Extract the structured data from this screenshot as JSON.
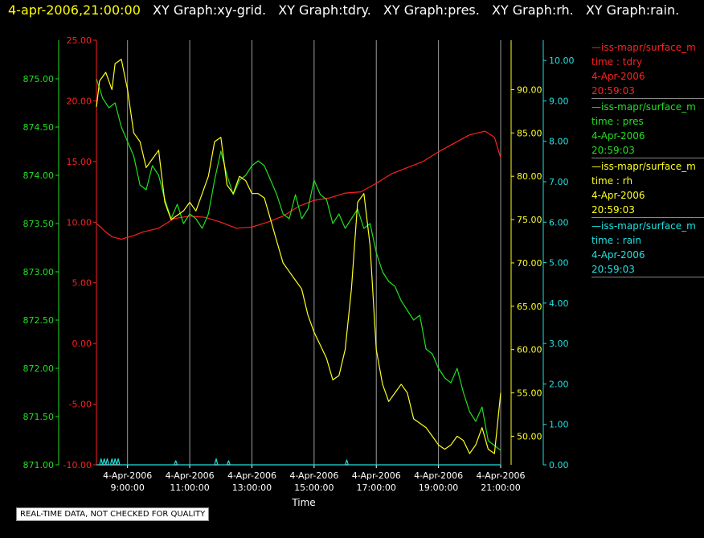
{
  "header": {
    "date": "4-apr-2006,21:00:00",
    "titles": [
      "XY Graph:xy-grid.",
      "XY Graph:tdry.",
      "XY Graph:pres.",
      "XY Graph:rh.",
      "XY Graph:rain."
    ]
  },
  "legend": [
    {
      "line": "—iss-mapr/surface_m",
      "var": "time : tdry",
      "date": "4-Apr-2006",
      "time": "20:59:03",
      "color": "#ff2020"
    },
    {
      "line": "—iss-mapr/surface_m",
      "var": "time : pres",
      "date": "4-Apr-2006",
      "time": "20:59:03",
      "color": "#20e020"
    },
    {
      "line": "—iss-mapr/surface_m",
      "var": "time : rh",
      "date": "4-Apr-2006",
      "time": "20:59:03",
      "color": "#ffff20"
    },
    {
      "line": "—iss-mapr/surface_m",
      "var": "time : rain",
      "date": "4-Apr-2006",
      "time": "20:59:03",
      "color": "#20e0e0"
    }
  ],
  "quality_note": "REAL-TIME DATA, NOT CHECKED FOR QUALITY",
  "chart_data": {
    "type": "line",
    "xlabel": "Time",
    "x_range_hours": [
      8.0,
      21.0
    ],
    "x_ticks": [
      {
        "hour": 9,
        "date": "4-Apr-2006",
        "time": "9:00:00"
      },
      {
        "hour": 11,
        "date": "4-Apr-2006",
        "time": "11:00:00"
      },
      {
        "hour": 13,
        "date": "4-Apr-2006",
        "time": "13:00:00"
      },
      {
        "hour": 15,
        "date": "4-Apr-2006",
        "time": "15:00:00"
      },
      {
        "hour": 17,
        "date": "4-Apr-2006",
        "time": "17:00:00"
      },
      {
        "hour": 19,
        "date": "4-Apr-2006",
        "time": "19:00:00"
      },
      {
        "hour": 21,
        "date": "4-Apr-2006",
        "time": "21:00:00"
      }
    ],
    "grid": "vertical",
    "axes": {
      "tdry": {
        "color": "#ff2020",
        "range": [
          -10,
          25
        ],
        "ticks": [
          "25.00",
          "20.00",
          "15.00",
          "10.00",
          "5.00",
          "0.00",
          "-5.00",
          "-10.00"
        ]
      },
      "pres": {
        "color": "#20e020",
        "range": [
          871.0,
          875.4
        ],
        "ticks": [
          "875.00",
          "874.50",
          "874.00",
          "873.50",
          "873.00",
          "872.50",
          "872.00",
          "871.50",
          "871.00"
        ]
      },
      "rh": {
        "color": "#ffff20",
        "range": [
          46.7,
          95.7
        ],
        "ticks": [
          "90.00",
          "85.00",
          "80.00",
          "75.00",
          "70.00",
          "65.00",
          "60.00",
          "55.00",
          "50.00"
        ]
      },
      "rain": {
        "color": "#20e0e0",
        "range": [
          0,
          10.5
        ],
        "ticks": [
          "10.00",
          "9.00",
          "8.00",
          "7.00",
          "6.00",
          "5.00",
          "4.00",
          "3.00",
          "2.00",
          "1.00",
          "0.00"
        ]
      }
    },
    "series": [
      {
        "key": "tdry",
        "color": "#ff2020",
        "x": [
          8.0,
          8.3,
          8.5,
          8.8,
          9.2,
          9.5,
          10.0,
          10.5,
          11.0,
          11.5,
          12.0,
          12.5,
          13.0,
          13.5,
          14.0,
          14.5,
          15.0,
          15.5,
          16.0,
          16.5,
          17.0,
          17.5,
          18.0,
          18.5,
          19.0,
          19.5,
          20.0,
          20.5,
          20.8,
          21.0
        ],
        "y": [
          9.9,
          9.2,
          8.8,
          8.6,
          8.9,
          9.2,
          9.5,
          10.3,
          10.5,
          10.4,
          10.0,
          9.5,
          9.6,
          10.0,
          10.5,
          11.3,
          11.8,
          12.0,
          12.4,
          12.5,
          13.2,
          14.0,
          14.5,
          15.0,
          15.8,
          16.5,
          17.2,
          17.5,
          17.0,
          15.3
        ]
      },
      {
        "key": "pres",
        "color": "#20e020",
        "x": [
          8.0,
          8.2,
          8.4,
          8.6,
          8.8,
          9.0,
          9.2,
          9.4,
          9.6,
          9.8,
          10.0,
          10.2,
          10.4,
          10.6,
          10.8,
          11.0,
          11.2,
          11.4,
          11.6,
          11.8,
          12.0,
          12.2,
          12.4,
          12.6,
          12.8,
          13.0,
          13.2,
          13.4,
          13.6,
          13.8,
          14.0,
          14.2,
          14.4,
          14.6,
          14.8,
          15.0,
          15.2,
          15.4,
          15.6,
          15.8,
          16.0,
          16.2,
          16.4,
          16.6,
          16.8,
          17.0,
          17.2,
          17.4,
          17.6,
          17.8,
          18.0,
          18.2,
          18.4,
          18.6,
          18.8,
          19.0,
          19.2,
          19.4,
          19.6,
          19.8,
          20.0,
          20.2,
          20.4,
          20.6,
          20.8,
          21.0
        ],
        "y": [
          875.0,
          874.8,
          874.7,
          874.75,
          874.5,
          874.35,
          874.2,
          873.9,
          873.85,
          874.1,
          874.0,
          873.75,
          873.55,
          873.7,
          873.5,
          873.6,
          873.55,
          873.45,
          873.6,
          873.95,
          874.25,
          874.0,
          873.8,
          873.95,
          874.0,
          874.1,
          874.15,
          874.1,
          873.95,
          873.8,
          873.6,
          873.55,
          873.8,
          873.55,
          873.65,
          873.95,
          873.8,
          873.75,
          873.5,
          873.6,
          873.45,
          873.55,
          873.65,
          873.45,
          873.5,
          873.2,
          873.0,
          872.9,
          872.85,
          872.7,
          872.6,
          872.5,
          872.55,
          872.2,
          872.15,
          872.0,
          871.9,
          871.85,
          872.0,
          871.75,
          871.55,
          871.45,
          871.6,
          871.25,
          871.2,
          871.15
        ]
      },
      {
        "key": "rh",
        "color": "#ffff20",
        "x": [
          8.0,
          8.1,
          8.3,
          8.5,
          8.6,
          8.8,
          9.0,
          9.2,
          9.4,
          9.6,
          9.8,
          10.0,
          10.2,
          10.4,
          10.6,
          10.8,
          11.0,
          11.2,
          11.4,
          11.6,
          11.8,
          12.0,
          12.2,
          12.4,
          12.6,
          12.8,
          13.0,
          13.2,
          13.4,
          13.6,
          13.8,
          14.0,
          14.2,
          14.4,
          14.6,
          14.8,
          15.0,
          15.2,
          15.4,
          15.6,
          15.8,
          16.0,
          16.2,
          16.4,
          16.6,
          16.8,
          17.0,
          17.2,
          17.4,
          17.6,
          17.8,
          18.0,
          18.2,
          18.4,
          18.6,
          18.8,
          19.0,
          19.2,
          19.4,
          19.6,
          19.8,
          20.0,
          20.2,
          20.4,
          20.6,
          20.8,
          21.0
        ],
        "y": [
          88.0,
          91.0,
          92.0,
          90.0,
          93.0,
          93.5,
          90.0,
          85.0,
          84.0,
          81.0,
          82.0,
          83.0,
          77.0,
          75.0,
          75.5,
          76.0,
          77.0,
          76.0,
          78.0,
          80.0,
          84.0,
          84.5,
          79.0,
          78.0,
          80.0,
          79.5,
          78.0,
          78.0,
          77.5,
          75.0,
          72.5,
          70.0,
          69.0,
          68.0,
          67.0,
          64.0,
          62.0,
          60.5,
          59.0,
          56.5,
          57.0,
          60.0,
          67.0,
          77.0,
          78.0,
          72.0,
          60.0,
          56.0,
          54.0,
          55.0,
          56.0,
          55.0,
          52.0,
          51.5,
          51.0,
          50.0,
          49.0,
          48.5,
          49.0,
          50.0,
          49.5,
          48.0,
          49.0,
          51.0,
          48.5,
          48.0,
          55.0
        ]
      },
      {
        "key": "rain",
        "color": "#20e0e0",
        "x": [
          8.0,
          8.1,
          8.15,
          8.2,
          8.25,
          8.3,
          8.35,
          8.4,
          8.45,
          8.5,
          8.55,
          8.6,
          8.65,
          8.7,
          8.75,
          8.8,
          9.0,
          10.5,
          10.55,
          10.6,
          11.0,
          11.8,
          11.85,
          11.9,
          12.0,
          12.2,
          12.25,
          12.3,
          13.0,
          14.0,
          16.0,
          16.05,
          16.1,
          17.0,
          19.0,
          21.0
        ],
        "y": [
          0,
          0,
          0.15,
          0,
          0.15,
          0,
          0.15,
          0,
          0,
          0.15,
          0,
          0.15,
          0,
          0.15,
          0,
          0,
          0,
          0,
          0.1,
          0,
          0,
          0,
          0.15,
          0,
          0,
          0,
          0.1,
          0,
          0,
          0,
          0,
          0.12,
          0,
          0,
          0,
          0
        ]
      }
    ]
  }
}
